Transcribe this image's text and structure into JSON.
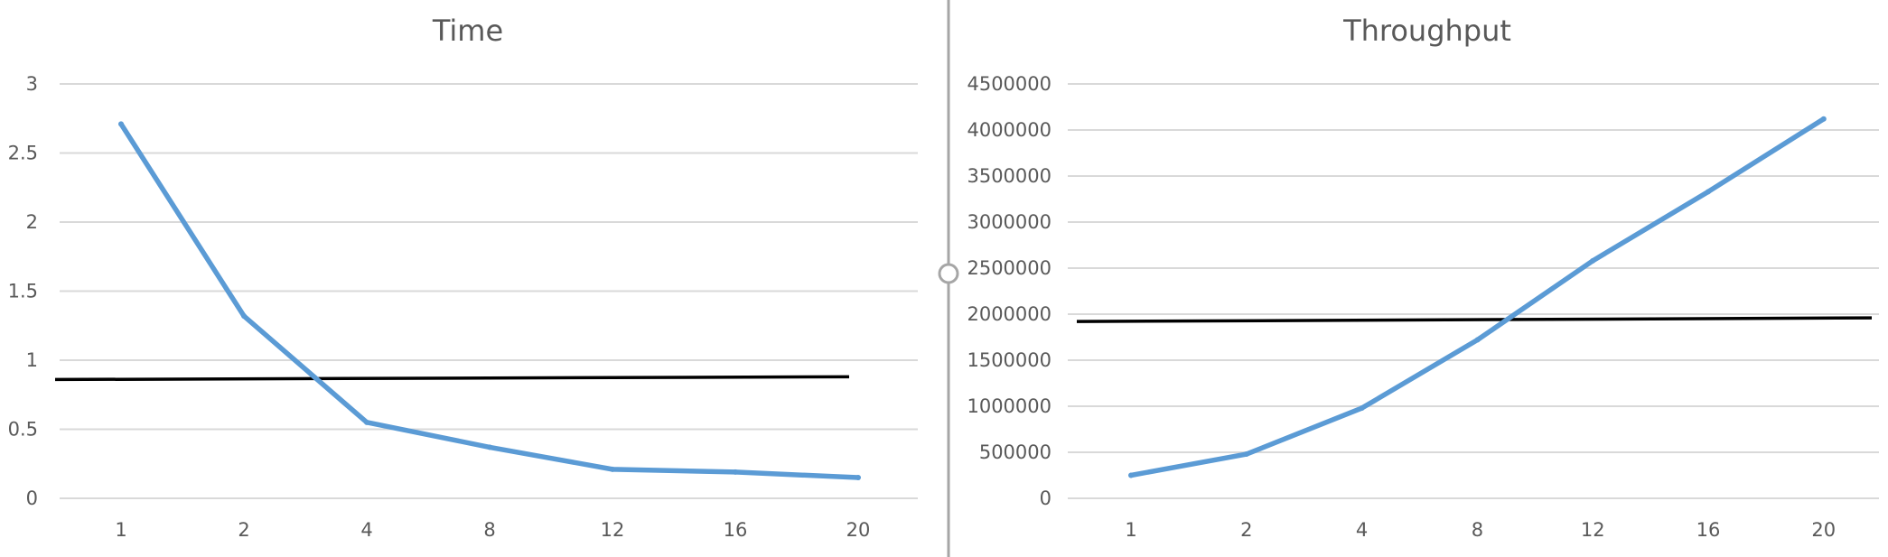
{
  "colors": {
    "series": "#5b9bd5",
    "reference_line": "#000000",
    "divider": "#a6a6a6",
    "text": "#595959",
    "grid": "#d9d9d9"
  },
  "divider_handle_icon": "circle-handle-icon",
  "chart_data": [
    {
      "type": "line",
      "title": "Time",
      "categories": [
        "1",
        "2",
        "4",
        "8",
        "12",
        "16",
        "20"
      ],
      "y_ticks": [
        "0",
        "0.5",
        "1",
        "1.5",
        "2",
        "2.5",
        "3"
      ],
      "ylim": [
        0,
        3
      ],
      "grid": true,
      "series": [
        {
          "values": [
            2.71,
            1.32,
            0.55,
            0.37,
            0.21,
            0.19,
            0.15
          ]
        }
      ],
      "reference_line": {
        "start": 0.86,
        "end": 0.88
      }
    },
    {
      "type": "line",
      "title": "Throughput",
      "categories": [
        "1",
        "2",
        "4",
        "8",
        "12",
        "16",
        "20"
      ],
      "y_ticks": [
        "0",
        "500000",
        "1000000",
        "1500000",
        "2000000",
        "2500000",
        "3000000",
        "3500000",
        "4000000",
        "4500000"
      ],
      "ylim": [
        0,
        4500000
      ],
      "grid": true,
      "series": [
        {
          "values": [
            250000,
            480000,
            980000,
            1720000,
            2580000,
            3330000,
            4120000
          ]
        }
      ],
      "reference_line": {
        "start": 1920000,
        "end": 1960000
      }
    }
  ]
}
